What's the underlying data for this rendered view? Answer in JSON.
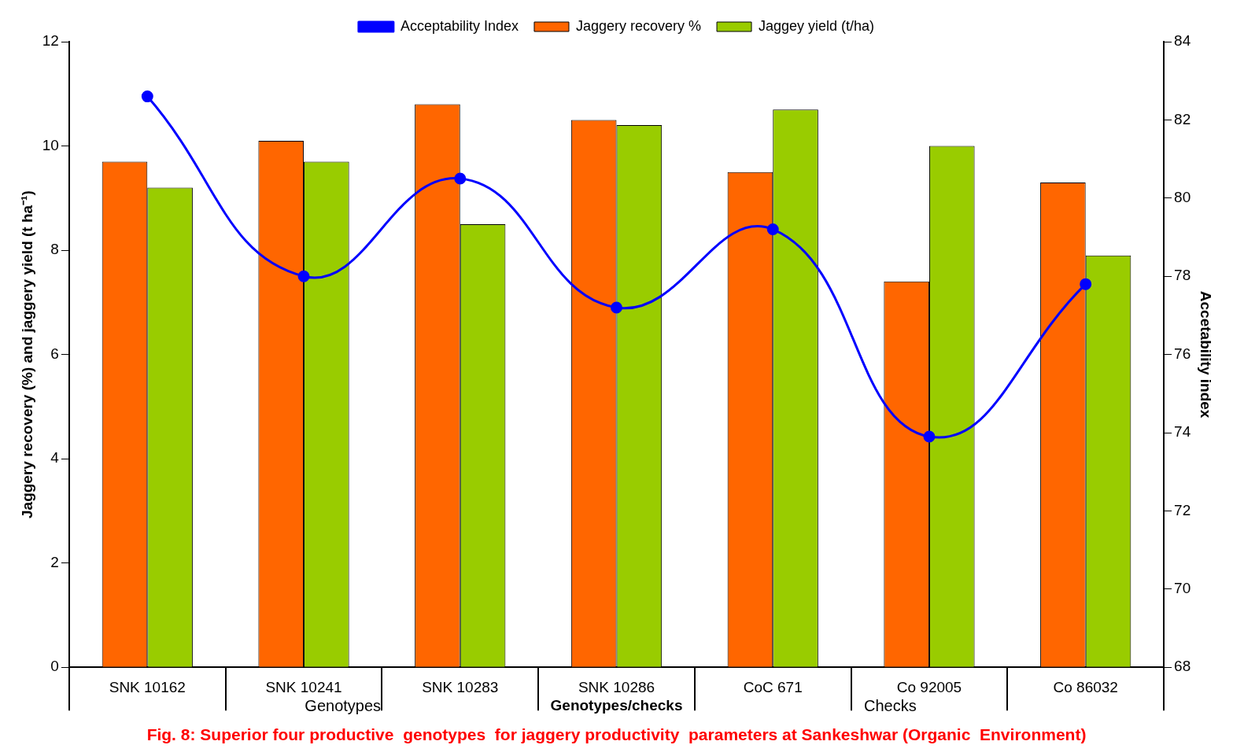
{
  "chart_data": {
    "type": "bar",
    "title": "Fig. 8: Superior four productive  genotypes  for jaggery productivity  parameters at Sankeshwar (Organic  Environment)",
    "xlabel": "Genotypes/checks",
    "ylabel": "Jaggery recovery (%) and jaggery yield (t ha⁻¹)",
    "y2label": "Accetability index",
    "categories": [
      "SNK 10162",
      "SNK 10241",
      "SNK 10283",
      "SNK 10286",
      "CoC 671",
      "Co 92005",
      "Co 86032"
    ],
    "series": [
      {
        "name": "Jaggery recovery %",
        "color": "#ff6600",
        "values": [
          9.7,
          10.1,
          10.8,
          10.5,
          9.5,
          7.4,
          9.3
        ]
      },
      {
        "name": "Jaggey yield (t/ha)",
        "color": "#99cc00",
        "values": [
          9.2,
          9.7,
          8.5,
          10.4,
          10.7,
          10.0,
          7.9
        ]
      },
      {
        "name": "Acceptability Index",
        "type": "line",
        "axis": "y2",
        "color": "#0000ff",
        "values": [
          82.6,
          78.0,
          80.5,
          77.2,
          79.2,
          73.9,
          77.8
        ]
      }
    ],
    "ylim": [
      0,
      12
    ],
    "yticks": [
      0,
      2,
      4,
      6,
      8,
      10,
      12
    ],
    "y2lim": [
      68,
      84
    ],
    "y2ticks": [
      68,
      70,
      72,
      74,
      76,
      78,
      80,
      82,
      84
    ],
    "legend": "top",
    "marker": "circle",
    "line_style": "solid",
    "annotations": [
      "Genotypes",
      "Checks"
    ]
  }
}
